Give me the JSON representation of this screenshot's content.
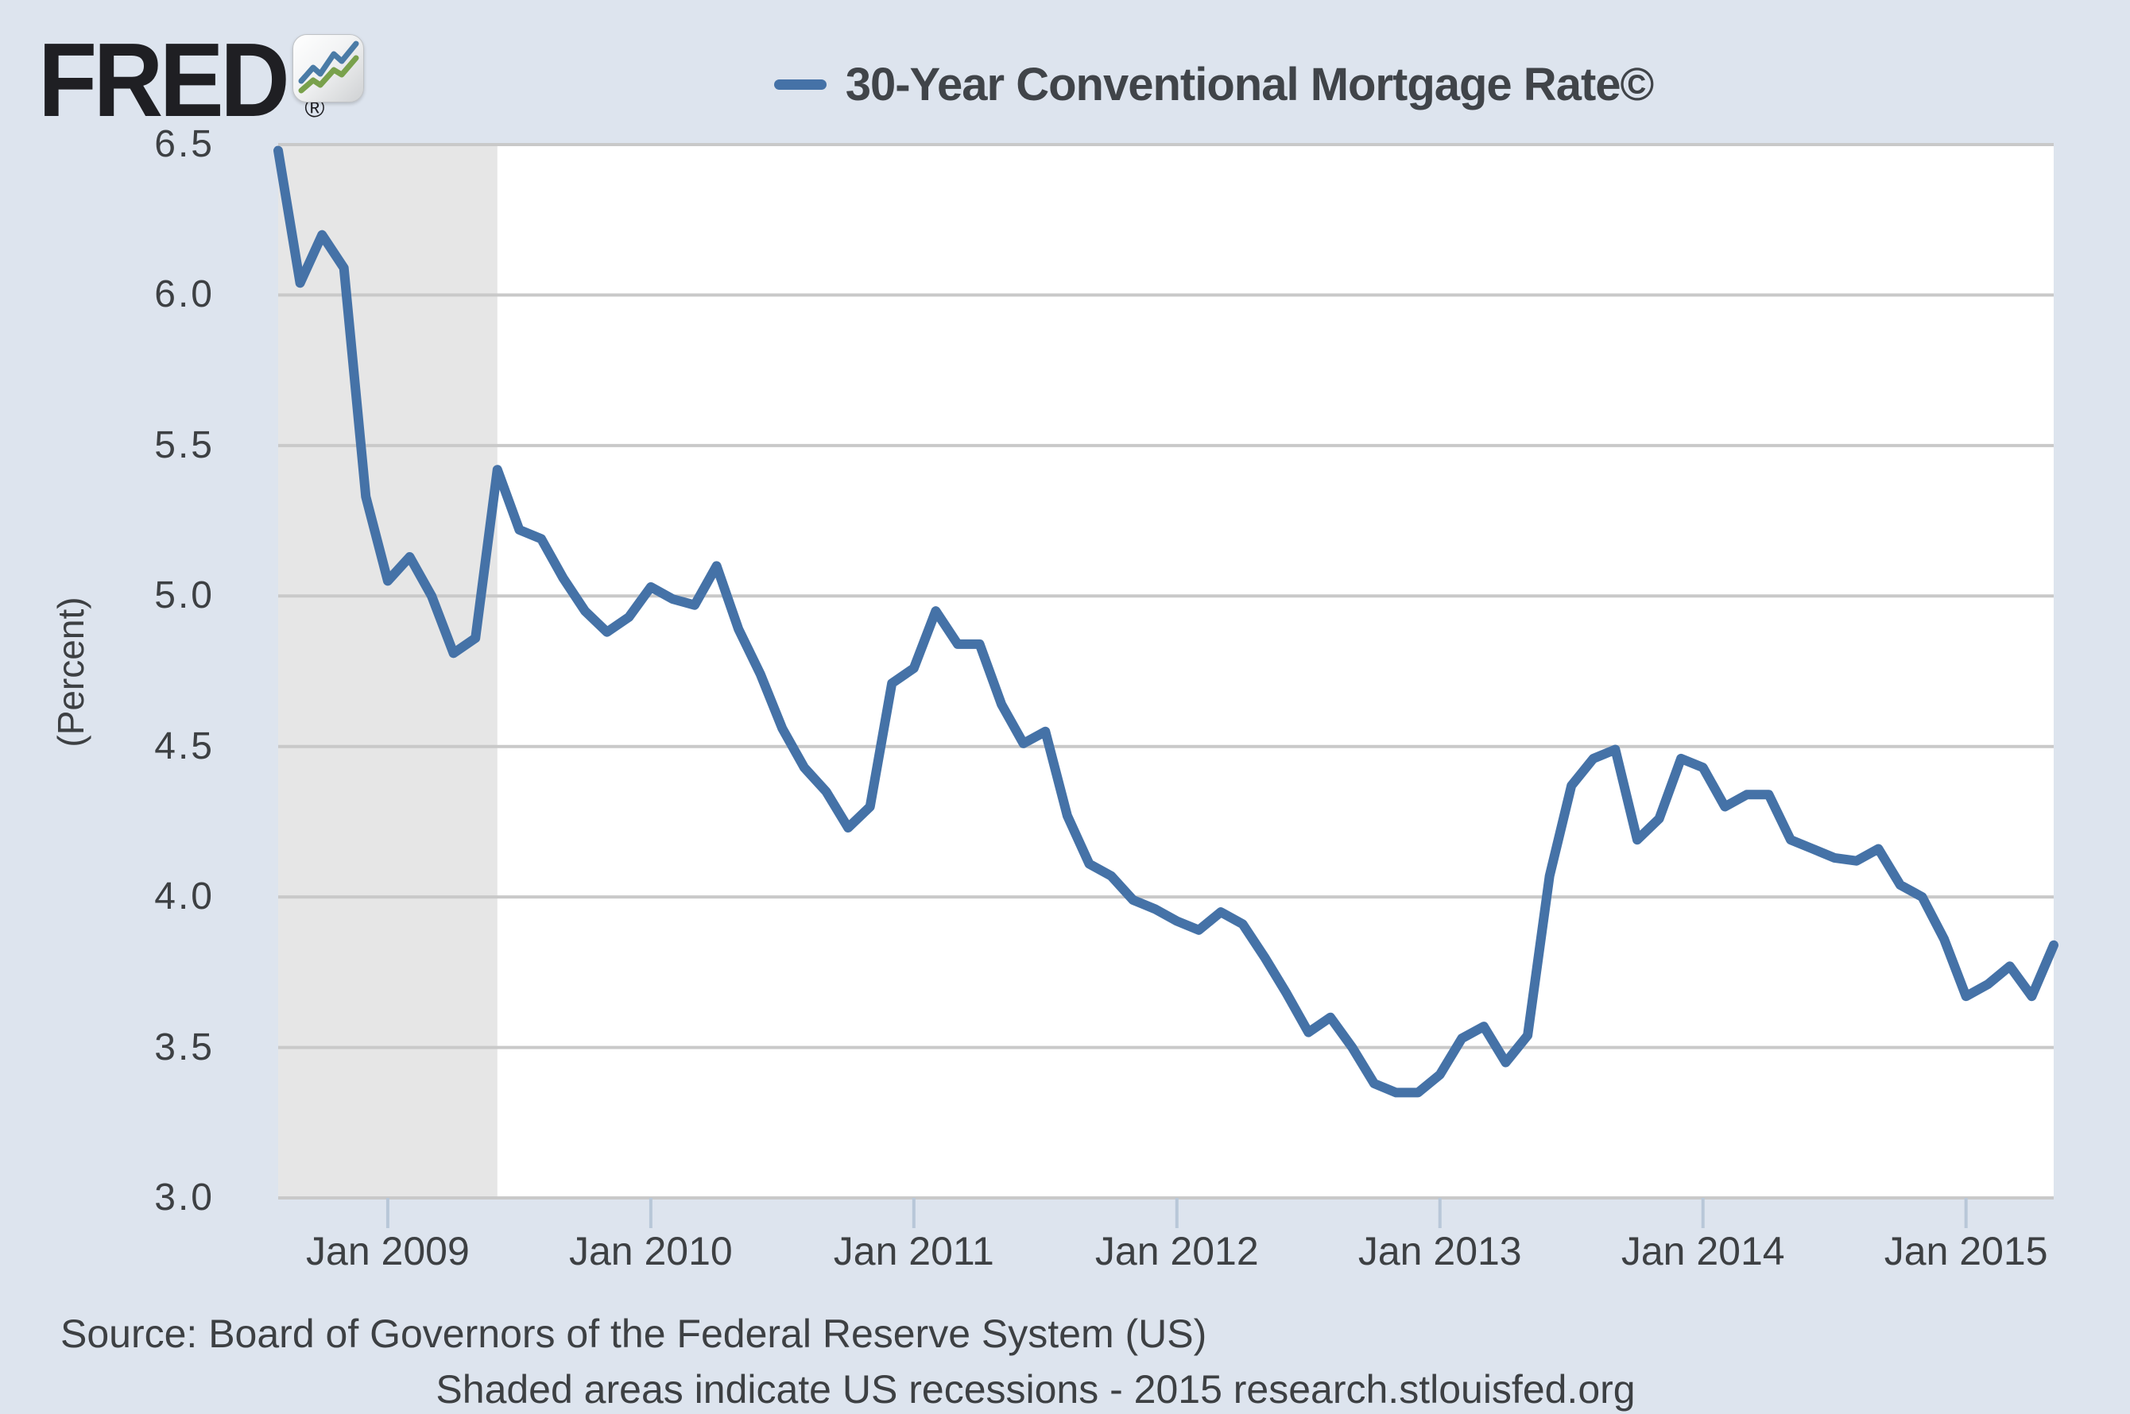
{
  "brand": {
    "logo_text": "FRED",
    "registered_mark": "®",
    "logo_icon": "fred-sparkline-icon"
  },
  "legend": {
    "series_label": "30-Year Conventional Mortgage Rate©"
  },
  "y_axis": {
    "title": "(Percent)",
    "ticks": [
      "6.5",
      "6.0",
      "5.5",
      "5.0",
      "4.5",
      "4.0",
      "3.5",
      "3.0"
    ]
  },
  "x_axis": {
    "ticks": [
      "Jan 2009",
      "Jan 2010",
      "Jan 2011",
      "Jan 2012",
      "Jan 2013",
      "Jan 2014",
      "Jan 2015"
    ]
  },
  "footer": {
    "source_line": "Source: Board of Governors of the Federal Reserve System (US)",
    "note_line": "Shaded areas indicate US recessions - 2015 research.stlouisfed.org"
  },
  "colors": {
    "background": "#dde4ee",
    "plot_background": "#ffffff",
    "grid": "#c9c9c9",
    "recession_shading": "#e6e6e6",
    "series_line": "#4572a7",
    "tick_mark": "#b8c7d8",
    "icon_line_blue": "#4a7ba6",
    "icon_line_green": "#79a14c"
  },
  "chart_data": {
    "type": "line",
    "title": "30-Year Conventional Mortgage Rate©",
    "ylabel": "(Percent)",
    "ylim": [
      3.0,
      6.5
    ],
    "y_tick_step": 0.5,
    "grid": "horizontal",
    "legend_position": "top-center",
    "frequency": "monthly",
    "recession_band": {
      "start": "2008-08",
      "end": "2009-06"
    },
    "x": [
      "2008-08",
      "2008-09",
      "2008-10",
      "2008-11",
      "2008-12",
      "2009-01",
      "2009-02",
      "2009-03",
      "2009-04",
      "2009-05",
      "2009-06",
      "2009-07",
      "2009-08",
      "2009-09",
      "2009-10",
      "2009-11",
      "2009-12",
      "2010-01",
      "2010-02",
      "2010-03",
      "2010-04",
      "2010-05",
      "2010-06",
      "2010-07",
      "2010-08",
      "2010-09",
      "2010-10",
      "2010-11",
      "2010-12",
      "2011-01",
      "2011-02",
      "2011-03",
      "2011-04",
      "2011-05",
      "2011-06",
      "2011-07",
      "2011-08",
      "2011-09",
      "2011-10",
      "2011-11",
      "2011-12",
      "2012-01",
      "2012-02",
      "2012-03",
      "2012-04",
      "2012-05",
      "2012-06",
      "2012-07",
      "2012-08",
      "2012-09",
      "2012-10",
      "2012-11",
      "2012-12",
      "2013-01",
      "2013-02",
      "2013-03",
      "2013-04",
      "2013-05",
      "2013-06",
      "2013-07",
      "2013-08",
      "2013-09",
      "2013-10",
      "2013-11",
      "2013-12",
      "2014-01",
      "2014-02",
      "2014-03",
      "2014-04",
      "2014-05",
      "2014-06",
      "2014-07",
      "2014-08",
      "2014-09",
      "2014-10",
      "2014-11",
      "2014-12",
      "2015-01",
      "2015-02",
      "2015-03",
      "2015-04",
      "2015-05"
    ],
    "values": [
      6.48,
      6.04,
      6.2,
      6.09,
      5.33,
      5.05,
      5.13,
      5.0,
      4.81,
      4.86,
      5.42,
      5.22,
      5.19,
      5.06,
      4.95,
      4.88,
      4.93,
      5.03,
      4.99,
      4.97,
      5.1,
      4.89,
      4.74,
      4.56,
      4.43,
      4.35,
      4.23,
      4.3,
      4.71,
      4.76,
      4.95,
      4.84,
      4.84,
      4.64,
      4.51,
      4.55,
      4.27,
      4.11,
      4.07,
      3.99,
      3.96,
      3.92,
      3.89,
      3.95,
      3.91,
      3.8,
      3.68,
      3.55,
      3.6,
      3.5,
      3.38,
      3.35,
      3.35,
      3.41,
      3.53,
      3.57,
      3.45,
      3.54,
      4.07,
      4.37,
      4.46,
      4.49,
      4.19,
      4.26,
      4.46,
      4.43,
      4.3,
      4.34,
      4.34,
      4.19,
      4.16,
      4.13,
      4.12,
      4.16,
      4.04,
      4.0,
      3.86,
      3.67,
      3.71,
      3.77,
      3.67,
      3.84
    ]
  }
}
